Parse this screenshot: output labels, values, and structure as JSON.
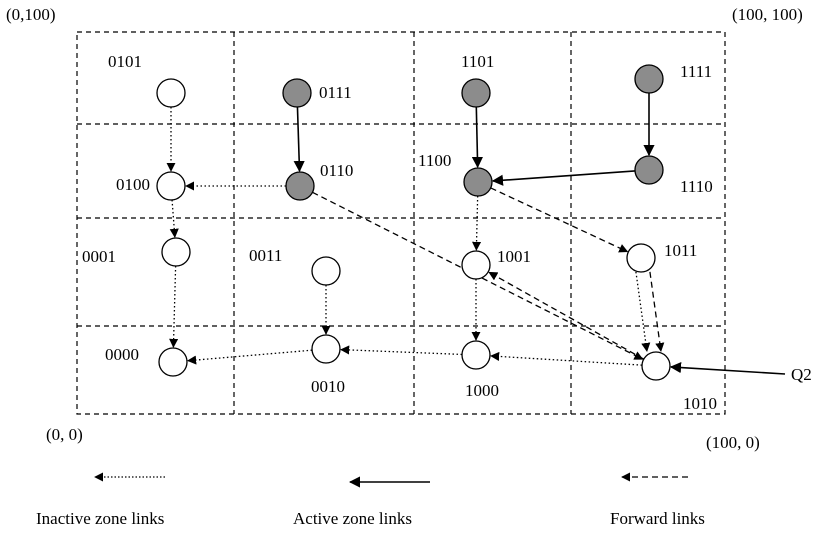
{
  "corners": {
    "top_left": "(0,100)",
    "top_right": "(100, 100)",
    "bottom_left": "(0, 0)",
    "bottom_right": "(100, 0)"
  },
  "colors": {
    "active": "#8c8c8c",
    "inactive": "#ffffff",
    "line": "#000000"
  },
  "nodes": [
    {
      "id": "0101",
      "label": "0101",
      "active": false
    },
    {
      "id": "0111",
      "label": "0111",
      "active": true
    },
    {
      "id": "1101",
      "label": "1101",
      "active": true
    },
    {
      "id": "1111",
      "label": "1111",
      "active": true
    },
    {
      "id": "0100",
      "label": "0100",
      "active": false
    },
    {
      "id": "0110",
      "label": "0110",
      "active": true
    },
    {
      "id": "1100",
      "label": "1100",
      "active": true
    },
    {
      "id": "1110",
      "label": "1110",
      "active": true
    },
    {
      "id": "0001",
      "label": "0001",
      "active": false
    },
    {
      "id": "0011",
      "label": "0011",
      "active": false
    },
    {
      "id": "1001",
      "label": "1001",
      "active": false
    },
    {
      "id": "1011",
      "label": "1011",
      "active": false
    },
    {
      "id": "0000",
      "label": "0000",
      "active": false
    },
    {
      "id": "0010",
      "label": "0010",
      "active": false
    },
    {
      "id": "1000",
      "label": "1000",
      "active": false
    },
    {
      "id": "1010",
      "label": "1010",
      "active": false
    }
  ],
  "links": [
    {
      "from": "0101",
      "to": "0100",
      "type": "inactive"
    },
    {
      "from": "0111",
      "to": "0110",
      "type": "active"
    },
    {
      "from": "1101",
      "to": "1100",
      "type": "active"
    },
    {
      "from": "1111",
      "to": "1110",
      "type": "active"
    },
    {
      "from": "0110",
      "to": "0100",
      "type": "inactive"
    },
    {
      "from": "1110",
      "to": "1100",
      "type": "active"
    },
    {
      "from": "0100",
      "to": "0001",
      "type": "inactive"
    },
    {
      "from": "1100",
      "to": "1001",
      "type": "inactive"
    },
    {
      "from": "1100",
      "to": "1011",
      "type": "forward"
    },
    {
      "from": "0110",
      "to": "1010",
      "type": "forward"
    },
    {
      "from": "1001",
      "to": "1000",
      "type": "inactive"
    },
    {
      "from": "1011",
      "to": "1010",
      "type": "inactive"
    },
    {
      "from": "1011",
      "to": "1010",
      "type": "forward"
    },
    {
      "from": "0011",
      "to": "0010",
      "type": "inactive"
    },
    {
      "from": "0001",
      "to": "0000",
      "type": "inactive"
    },
    {
      "from": "0010",
      "to": "0000",
      "type": "inactive"
    },
    {
      "from": "1000",
      "to": "0010",
      "type": "inactive"
    },
    {
      "from": "1010",
      "to": "1000",
      "type": "inactive"
    },
    {
      "from": "1010",
      "to": "1001",
      "type": "forward"
    },
    {
      "from": "Q2",
      "to": "1010",
      "type": "active"
    }
  ],
  "query": {
    "label": "Q2"
  },
  "legend": {
    "inactive": "Inactive zone links",
    "active": "Active zone links",
    "forward": "Forward links"
  }
}
